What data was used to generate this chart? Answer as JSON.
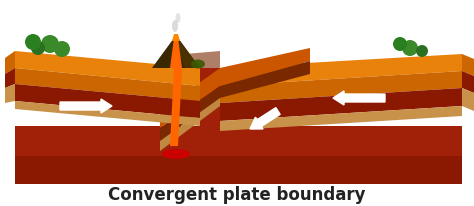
{
  "title": "Convergent plate boundary",
  "title_fontsize": 12,
  "title_color": "#222222",
  "bg_color": "#ffffff",
  "fig_width": 4.74,
  "fig_height": 2.07,
  "dpi": 100,
  "colors": {
    "orange_top": "#E8820A",
    "orange_grad": "#F0920A",
    "orange_front": "#CC6600",
    "dark_red_layer": "#8B1800",
    "medium_red": "#A02008",
    "tan_layer": "#C8924A",
    "tan_light": "#D4A855",
    "dark_brown": "#5A1800",
    "lava_orange": "#FF6600",
    "lava_red": "#CC0000",
    "green_tree": "#3A8A2A",
    "green_dark": "#2A7020",
    "white": "#FFFFFF",
    "volcano_dark": "#3A2800",
    "subduct_orange": "#CC5500",
    "subduct_dark": "#7A2800",
    "subduct_tan": "#C08840",
    "smoke": "#D0D0D0"
  }
}
